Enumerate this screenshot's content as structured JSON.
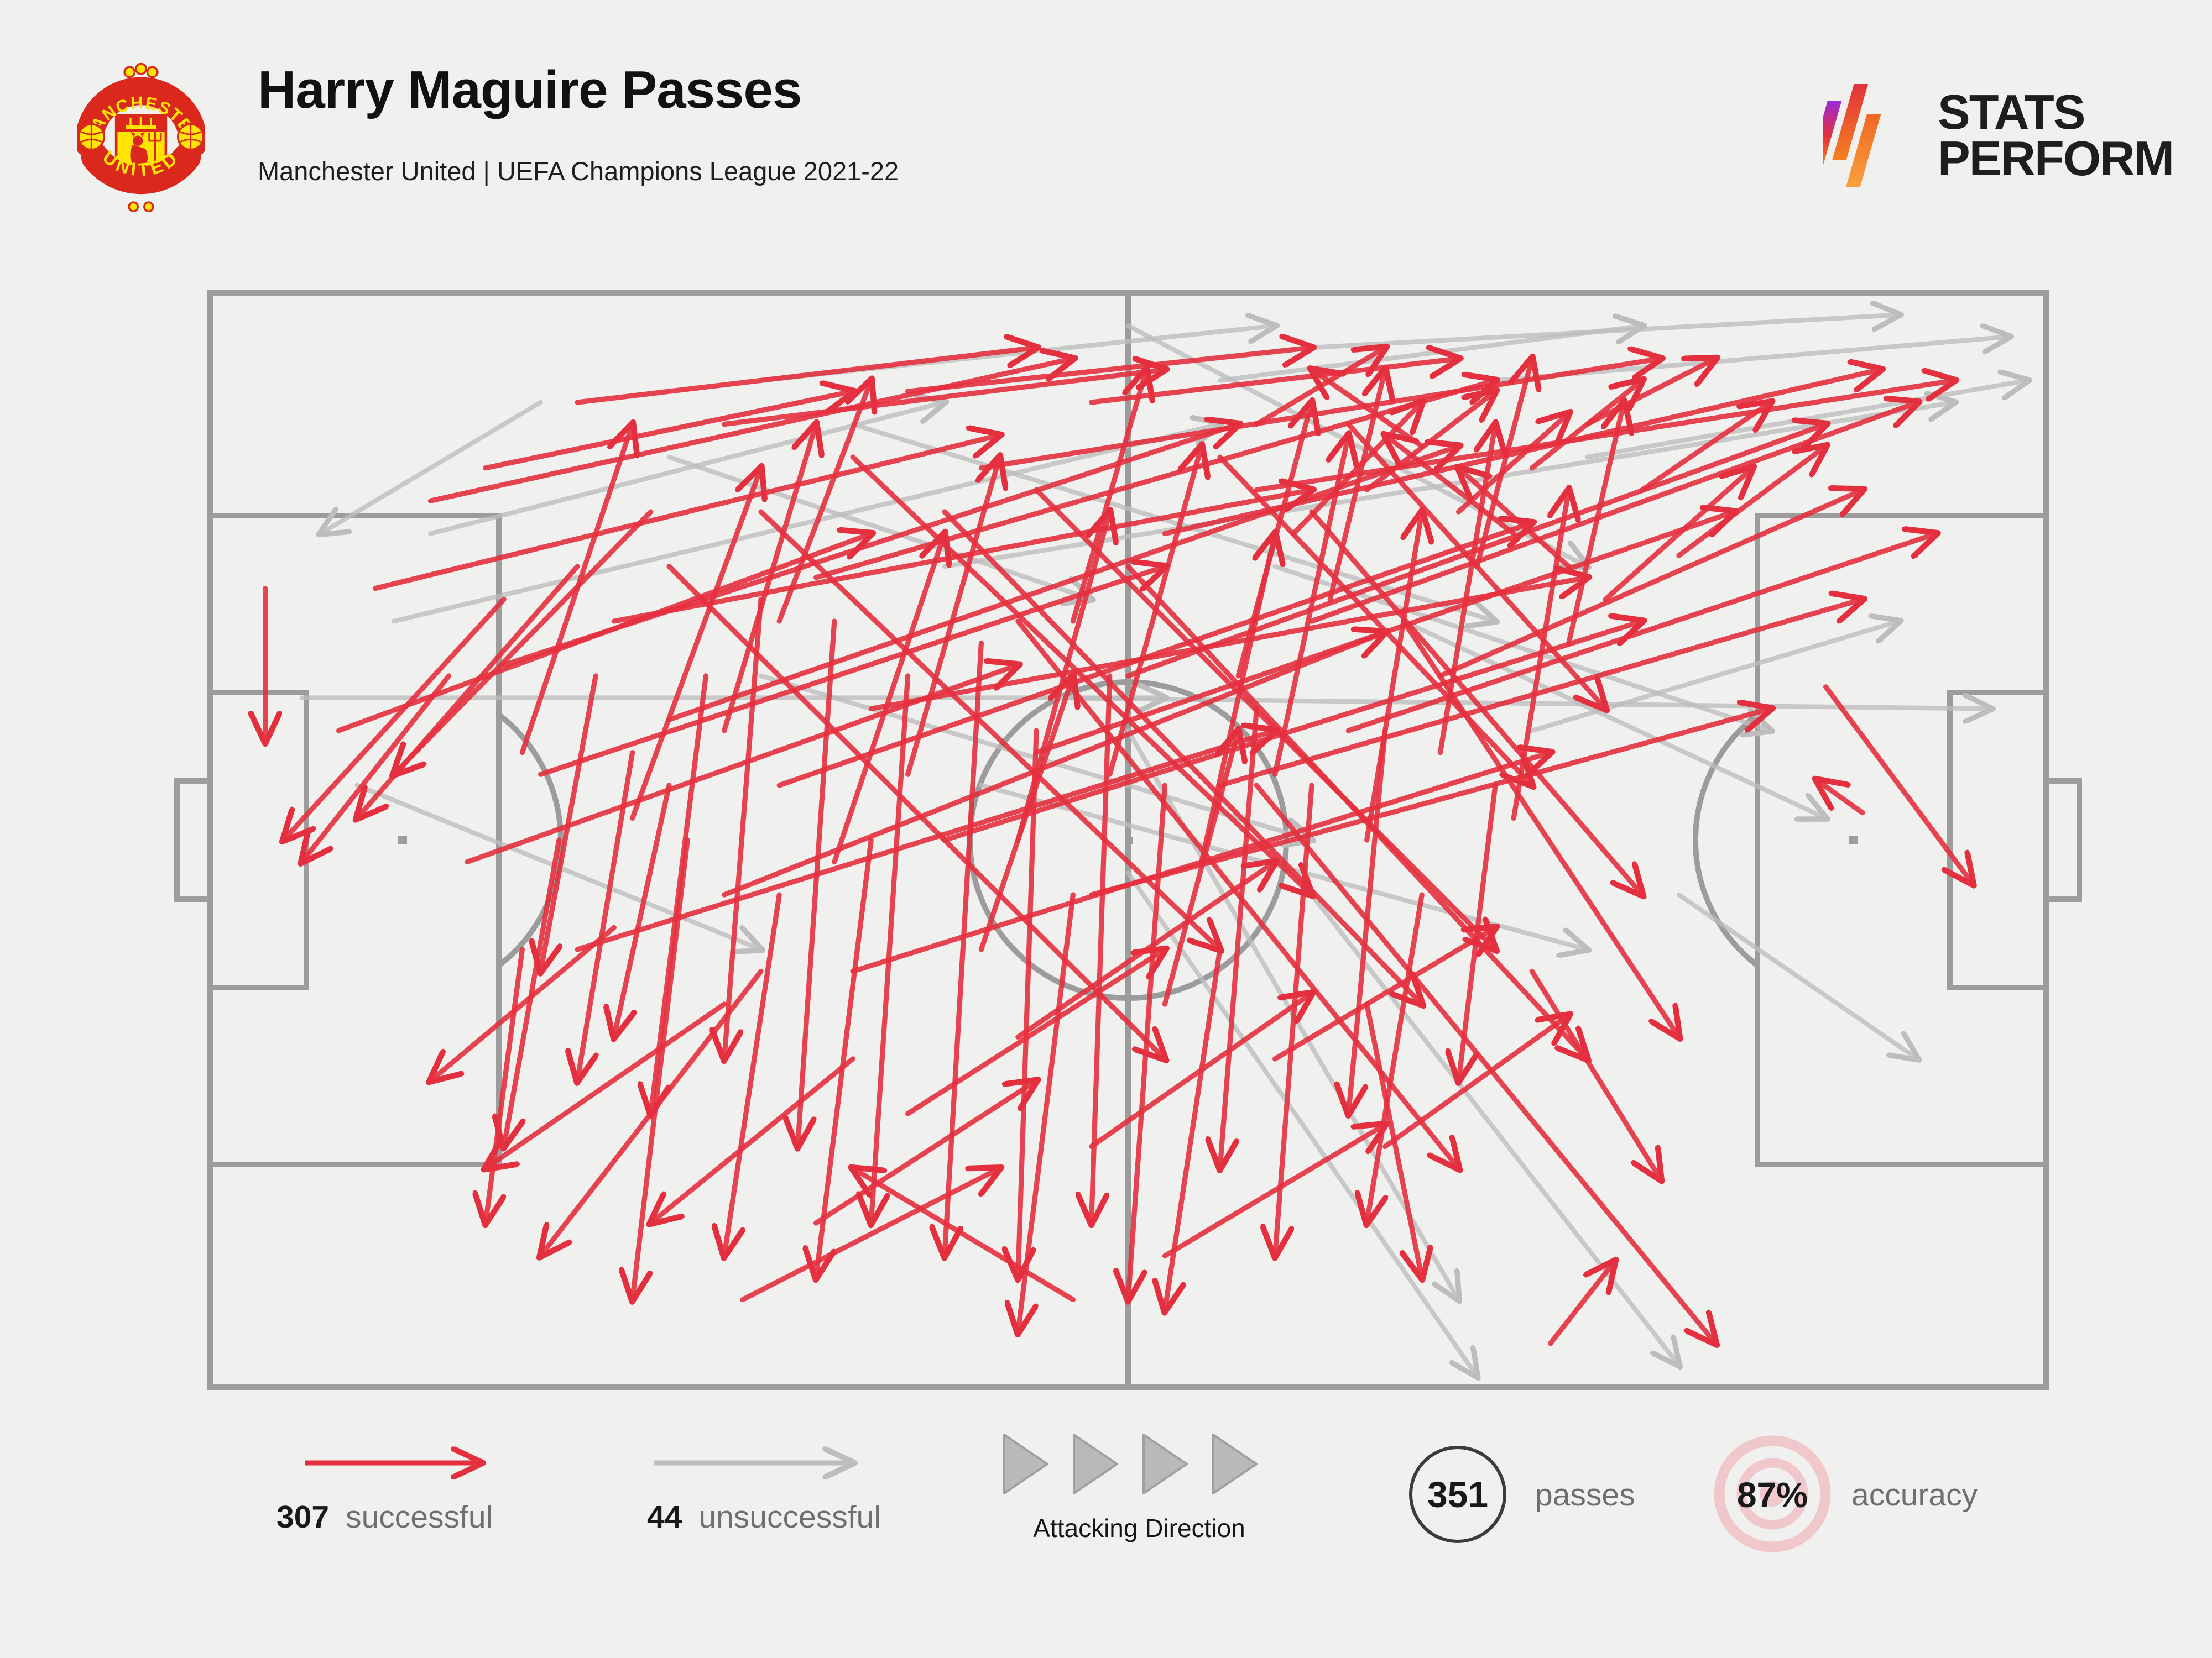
{
  "header": {
    "title": "Harry Maguire Passes",
    "subtitle": "Manchester United | UEFA Champions League 2021-22",
    "crest_top_text": "MANCHESTER",
    "crest_bottom_text": "UNITED"
  },
  "branding": {
    "line1": "STATS",
    "line2": "PERFORM"
  },
  "legend": {
    "successful": {
      "count": 307,
      "label": "successful"
    },
    "unsuccessful": {
      "count": 44,
      "label": "unsuccessful"
    },
    "attacking_direction_label": "Attacking Direction",
    "passes": {
      "count": 351,
      "label": "passes"
    },
    "accuracy": {
      "value": "87%",
      "label": "accuracy"
    }
  },
  "colors": {
    "successful": "#e4303e",
    "unsuccessful": "#bdbdbd",
    "pitch_lines": "#9c9c9c",
    "background": "#f0f0ef",
    "accuracy_ring_pink": "#f0c8cb",
    "crest_red": "#da291c",
    "crest_yellow": "#ffe500"
  },
  "chart_data": {
    "type": "pass_map",
    "title": "Harry Maguire Passes",
    "subtitle": "Manchester United | UEFA Champions League 2021-22",
    "attacking_direction": "left-to-right",
    "successful_count": 307,
    "unsuccessful_count": 44,
    "total_passes": 351,
    "accuracy": "87%",
    "coordinate_units": "percent of pitch, origin top-left, attacking toward x=100",
    "sampling_note": "arrow endpoints below are a representative sample read from the graphic; full dataset not individually labelled in image",
    "successful_passes": [
      [
        12,
        19,
        47,
        6
      ],
      [
        9,
        27,
        43,
        13
      ],
      [
        16,
        34,
        56,
        12
      ],
      [
        22,
        30,
        60,
        18
      ],
      [
        7,
        40,
        36,
        22
      ],
      [
        18,
        44,
        52,
        25
      ],
      [
        25,
        39,
        68,
        14
      ],
      [
        31,
        45,
        72,
        21
      ],
      [
        36,
        38,
        75,
        26
      ],
      [
        28,
        55,
        64,
        31
      ],
      [
        40,
        50,
        78,
        30
      ],
      [
        45,
        42,
        83,
        20
      ],
      [
        33,
        26,
        70,
        8
      ],
      [
        50,
        35,
        88,
        12
      ],
      [
        55,
        45,
        90,
        28
      ],
      [
        48,
        55,
        85,
        38
      ],
      [
        20,
        60,
        58,
        40
      ],
      [
        14,
        52,
        44,
        34
      ],
      [
        60,
        30,
        93,
        10
      ],
      [
        52,
        22,
        91,
        7
      ],
      [
        42,
        16,
        79,
        6
      ],
      [
        57,
        18,
        95,
        8
      ],
      [
        35,
        62,
        73,
        42
      ],
      [
        62,
        40,
        94,
        22
      ],
      [
        17,
        42,
        23,
        12
      ],
      [
        23,
        48,
        30,
        16
      ],
      [
        28,
        40,
        33,
        12
      ],
      [
        34,
        52,
        40,
        22
      ],
      [
        38,
        44,
        43,
        15
      ],
      [
        44,
        50,
        49,
        20
      ],
      [
        49,
        44,
        54,
        14
      ],
      [
        54,
        52,
        58,
        22
      ],
      [
        58,
        44,
        62,
        13
      ],
      [
        63,
        50,
        66,
        20
      ],
      [
        67,
        42,
        70,
        12
      ],
      [
        71,
        48,
        74,
        18
      ],
      [
        31,
        30,
        36,
        8
      ],
      [
        47,
        30,
        51,
        7
      ],
      [
        61,
        28,
        64,
        7
      ],
      [
        69,
        25,
        72,
        6
      ],
      [
        74,
        32,
        77,
        10
      ],
      [
        56,
        35,
        60,
        10
      ],
      [
        42,
        60,
        47,
        35
      ],
      [
        52,
        65,
        56,
        40
      ],
      [
        27,
        35,
        24,
        75
      ],
      [
        30,
        28,
        28,
        70
      ],
      [
        34,
        30,
        32,
        78
      ],
      [
        38,
        35,
        36,
        85
      ],
      [
        42,
        32,
        40,
        88
      ],
      [
        45,
        40,
        44,
        90
      ],
      [
        49,
        35,
        48,
        85
      ],
      [
        52,
        45,
        50,
        92
      ],
      [
        36,
        50,
        33,
        90
      ],
      [
        31,
        55,
        28,
        88
      ],
      [
        57,
        38,
        55,
        80
      ],
      [
        60,
        45,
        58,
        88
      ],
      [
        64,
        40,
        62,
        75
      ],
      [
        47,
        55,
        44,
        95
      ],
      [
        55,
        60,
        52,
        93
      ],
      [
        25,
        45,
        22,
        68
      ],
      [
        66,
        55,
        63,
        85
      ],
      [
        70,
        45,
        68,
        72
      ],
      [
        20,
        25,
        8,
        48
      ],
      [
        24,
        20,
        10,
        44
      ],
      [
        16,
        28,
        4,
        50
      ],
      [
        28,
        65,
        15,
        80
      ],
      [
        22,
        58,
        12,
        72
      ],
      [
        35,
        70,
        24,
        85
      ],
      [
        13,
        35,
        5,
        52
      ],
      [
        30,
        62,
        18,
        88
      ],
      [
        3,
        27,
        3,
        41
      ],
      [
        30,
        20,
        55,
        60
      ],
      [
        35,
        15,
        60,
        55
      ],
      [
        25,
        25,
        52,
        70
      ],
      [
        40,
        20,
        66,
        65
      ],
      [
        45,
        18,
        70,
        60
      ],
      [
        57,
        45,
        82,
        96
      ],
      [
        50,
        25,
        75,
        70
      ],
      [
        44,
        30,
        68,
        80
      ],
      [
        60,
        20,
        78,
        55
      ],
      [
        65,
        30,
        80,
        68
      ],
      [
        55,
        15,
        72,
        45
      ],
      [
        62,
        12,
        76,
        38
      ],
      [
        59,
        22,
        66,
        10
      ],
      [
        63,
        18,
        70,
        9
      ],
      [
        68,
        20,
        74,
        11
      ],
      [
        72,
        16,
        78,
        8
      ],
      [
        66,
        14,
        60,
        7
      ],
      [
        71,
        22,
        64,
        13
      ],
      [
        74,
        25,
        68,
        16
      ],
      [
        57,
        12,
        64,
        5
      ],
      [
        75,
        12,
        82,
        6
      ],
      [
        78,
        18,
        85,
        10
      ],
      [
        76,
        28,
        84,
        16
      ],
      [
        80,
        24,
        88,
        14
      ],
      [
        88,
        36,
        96,
        54
      ],
      [
        90,
        47.5,
        87.5,
        44.5
      ],
      [
        73,
        96,
        76.5,
        88.5
      ],
      [
        67,
        35,
        90,
        18
      ],
      [
        72,
        62,
        79,
        81
      ],
      [
        63,
        65,
        66,
        90
      ],
      [
        19,
        50,
        16,
        78
      ],
      [
        23,
        42,
        20,
        72
      ],
      [
        17,
        60,
        15,
        85
      ],
      [
        26,
        50,
        23,
        92
      ],
      [
        21,
        35,
        18,
        62
      ],
      [
        20,
        10,
        45,
        5
      ],
      [
        28,
        12,
        52,
        7
      ],
      [
        38,
        9,
        60,
        5
      ],
      [
        15,
        16,
        35,
        9
      ],
      [
        48,
        10,
        68,
        6
      ],
      [
        44,
        68,
        58,
        52
      ],
      [
        38,
        75,
        52,
        60
      ],
      [
        48,
        78,
        60,
        64
      ],
      [
        58,
        70,
        70,
        58
      ],
      [
        33,
        85,
        45,
        72
      ],
      [
        29,
        92,
        43,
        80
      ],
      [
        52,
        88,
        64,
        76
      ],
      [
        47,
        92,
        35,
        80
      ],
      [
        64,
        78,
        74,
        66
      ]
    ],
    "unsuccessful_passes": [
      [
        10,
        30,
        55,
        12
      ],
      [
        5,
        37,
        52,
        37
      ],
      [
        30,
        8,
        58,
        3
      ],
      [
        12,
        22,
        40,
        10
      ],
      [
        45,
        37,
        97,
        38
      ],
      [
        40,
        25,
        95,
        10
      ],
      [
        55,
        8,
        78,
        3
      ],
      [
        60,
        5,
        92,
        2
      ],
      [
        70,
        8,
        98,
        4
      ],
      [
        75,
        15,
        99,
        8
      ],
      [
        35,
        12,
        70,
        30
      ],
      [
        42,
        45,
        75,
        60
      ],
      [
        50,
        40,
        68,
        92
      ],
      [
        50,
        53,
        69,
        99
      ],
      [
        60,
        55,
        80,
        98
      ],
      [
        50,
        3,
        75,
        25
      ],
      [
        25,
        15,
        48,
        28
      ],
      [
        65,
        30,
        88,
        48
      ],
      [
        8,
        45,
        30,
        60
      ],
      [
        72,
        40,
        92,
        30
      ],
      [
        30,
        35,
        60,
        50
      ],
      [
        58,
        25,
        85,
        40
      ],
      [
        18,
        10,
        6,
        22
      ],
      [
        80,
        55,
        93,
        70
      ]
    ]
  }
}
